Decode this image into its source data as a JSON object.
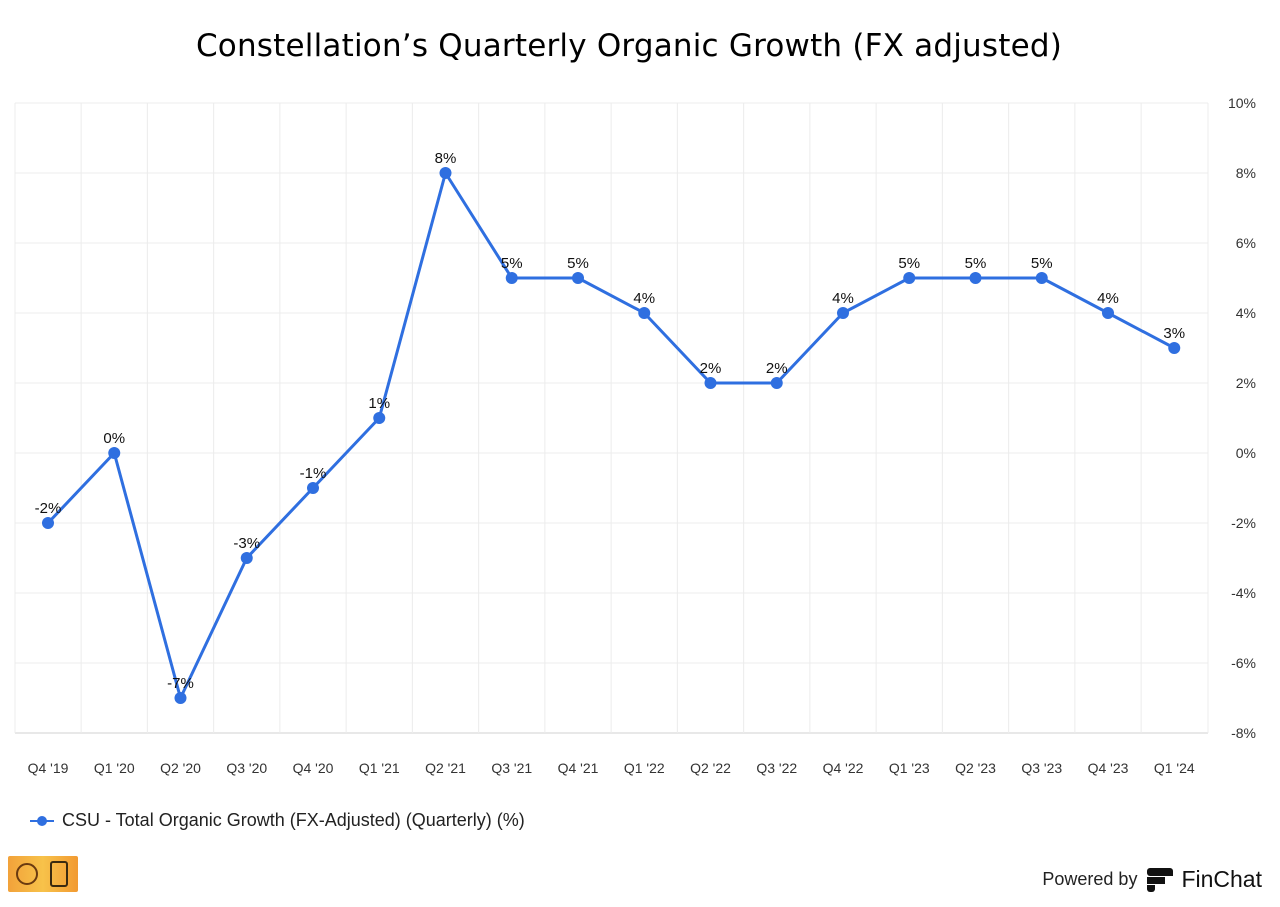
{
  "title": "Constellation’s Quarterly Organic Growth (FX adjusted)",
  "legend": {
    "label": "CSU - Total Organic Growth (FX-Adjusted) (Quarterly) (%)"
  },
  "footer": {
    "powered_by": "Powered by",
    "brand": "FinChat",
    "brand_icon": "finchat-logo-icon",
    "badge_icon": "partner-logo-badge"
  },
  "colors": {
    "series": "#2f6fe0",
    "grid": "#ececec",
    "axis": "#d0d0d0"
  },
  "chart_data": {
    "type": "line",
    "title": "Constellation’s Quarterly Organic Growth (FX adjusted)",
    "categories": [
      "Q4 '19",
      "Q1 '20",
      "Q2 '20",
      "Q3 '20",
      "Q4 '20",
      "Q1 '21",
      "Q2 '21",
      "Q3 '21",
      "Q4 '21",
      "Q1 '22",
      "Q2 '22",
      "Q3 '22",
      "Q4 '22",
      "Q1 '23",
      "Q2 '23",
      "Q3 '23",
      "Q4 '23",
      "Q1 '24"
    ],
    "series": [
      {
        "name": "CSU - Total Organic Growth (FX-Adjusted) (Quarterly) (%)",
        "values": [
          -2,
          0,
          -7,
          -3,
          -1,
          1,
          8,
          5,
          5,
          4,
          2,
          2,
          4,
          5,
          5,
          5,
          4,
          3
        ],
        "labels": [
          "-2%",
          "0%",
          "-7%",
          "-3%",
          "-1%",
          "1%",
          "8%",
          "5%",
          "5%",
          "4%",
          "2%",
          "2%",
          "4%",
          "5%",
          "5%",
          "5%",
          "4%",
          "3%"
        ]
      }
    ],
    "ylim": [
      -8,
      10
    ],
    "yticks": [
      -8,
      -6,
      -4,
      -2,
      0,
      2,
      4,
      6,
      8,
      10
    ],
    "ytick_labels": [
      "-8%",
      "-6%",
      "-4%",
      "-2%",
      "0%",
      "2%",
      "4%",
      "6%",
      "8%",
      "10%"
    ],
    "y_axis_side": "right",
    "grid": true,
    "legend_position": "bottom-left"
  }
}
